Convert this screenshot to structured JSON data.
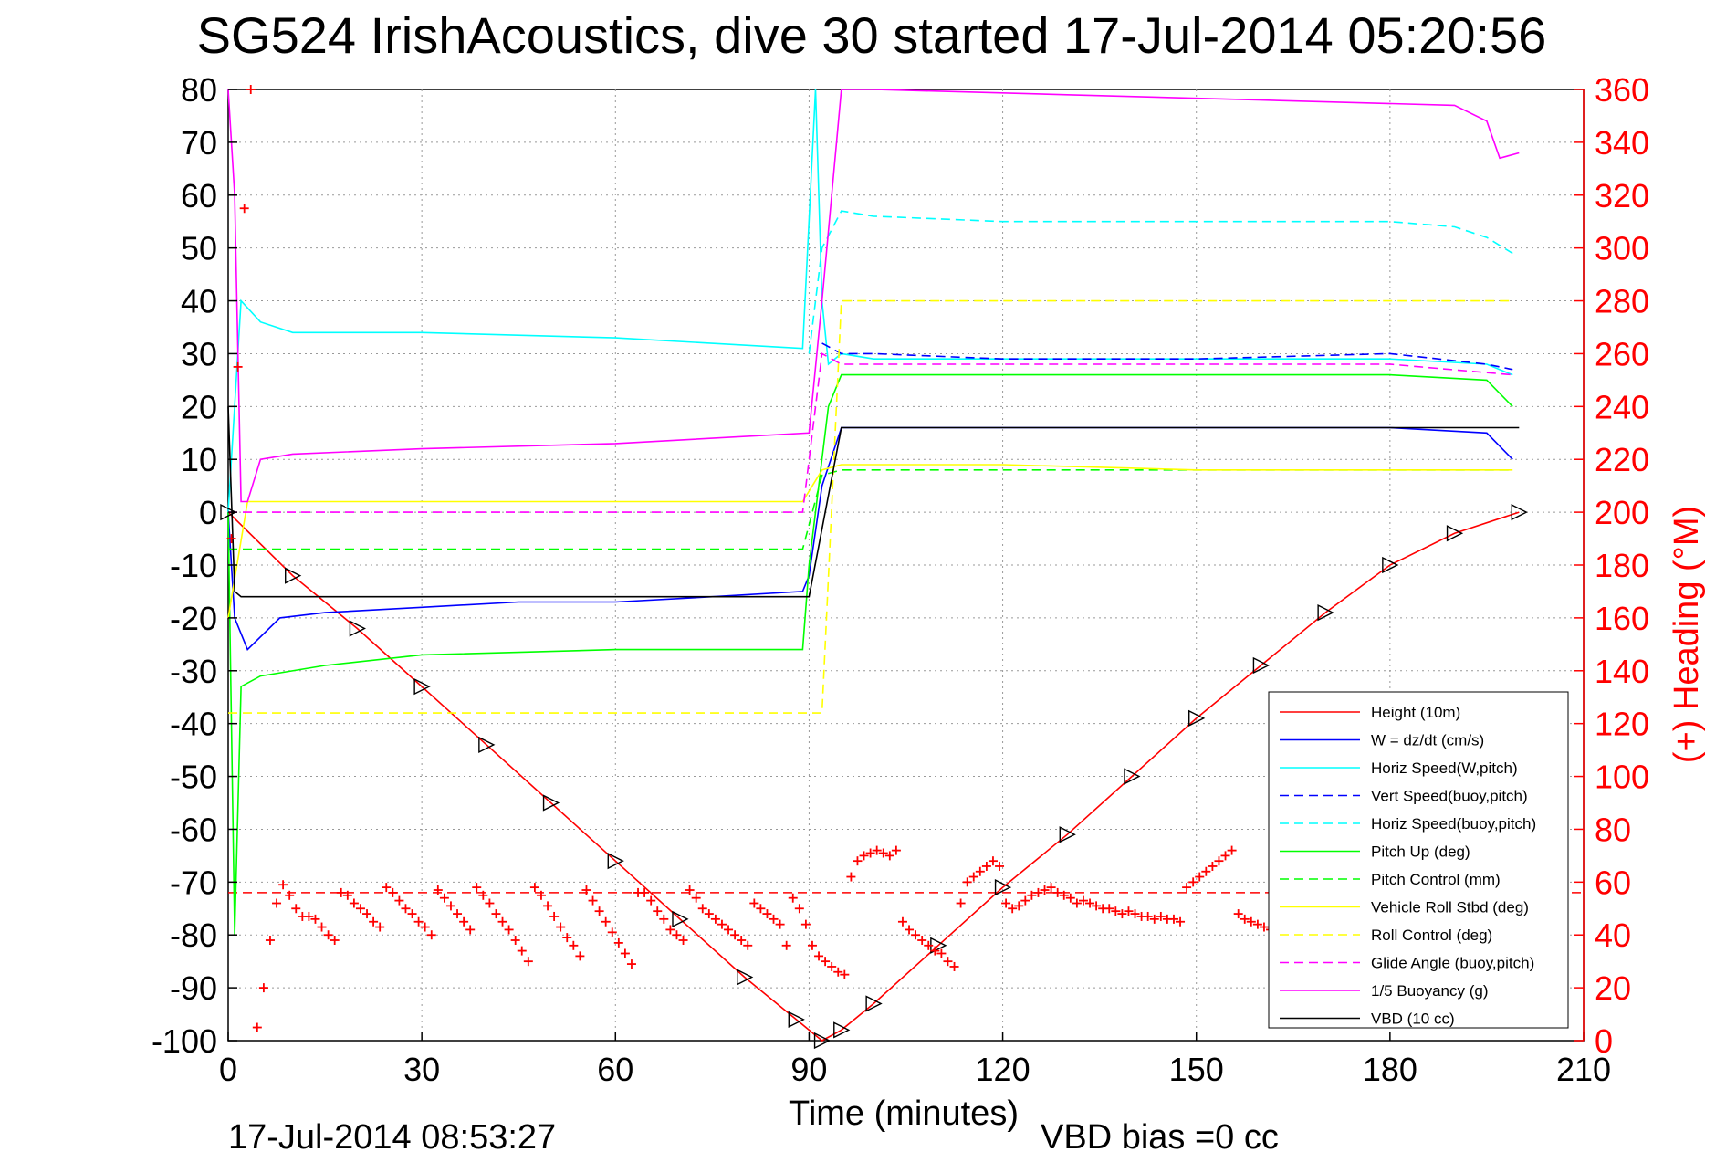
{
  "title": "SG524 IrishAcoustics, dive 30 started 17-Jul-2014 05:20:56",
  "footer": {
    "timestamp": "17-Jul-2014 08:53:27",
    "vbd_bias": "VBD bias =0 cc"
  },
  "colors": {
    "height": "#ff0000",
    "w": "#0000ff",
    "horiz": "#00ffff",
    "pitch": "#00ff00",
    "roll": "#ffff00",
    "glide": "#ff00ff",
    "vbd": "#000000",
    "heading_axis": "#ff0000"
  },
  "chart_data": {
    "type": "line",
    "title": "SG524 IrishAcoustics, dive 30 started 17-Jul-2014 05:20:56",
    "xlabel": "Time (minutes)",
    "ylabel": "",
    "y2label": "(+) Heading (°M)",
    "xlim": [
      0,
      210
    ],
    "ylim": [
      -100,
      80
    ],
    "y2lim": [
      0,
      360
    ],
    "xticks": [
      "0",
      "30",
      "60",
      "90",
      "120",
      "150",
      "180",
      "210"
    ],
    "yticks": [
      "80",
      "70",
      "60",
      "50",
      "40",
      "30",
      "20",
      "10",
      "0",
      "-10",
      "-20",
      "-30",
      "-40",
      "-50",
      "-60",
      "-70",
      "-80",
      "-90",
      "-100"
    ],
    "y2ticks": [
      "360",
      "340",
      "320",
      "300",
      "280",
      "260",
      "240",
      "220",
      "200",
      "180",
      "160",
      "140",
      "120",
      "100",
      "80",
      "60",
      "40",
      "20",
      "0"
    ],
    "grid": true,
    "legend_position": "bottom-right",
    "series": [
      {
        "name": "Height (10m)",
        "style": "solid",
        "color": "#ff0000",
        "x": [
          0,
          10,
          20,
          30,
          40,
          50,
          60,
          70,
          80,
          88,
          92,
          95,
          100,
          110,
          120,
          130,
          140,
          150,
          160,
          170,
          180,
          190,
          200
        ],
        "y": [
          0,
          -12,
          -22,
          -33,
          -44,
          -55,
          -66,
          -77,
          -88,
          -96,
          -100,
          -98,
          -93,
          -82,
          -71,
          -61,
          -50,
          -39,
          -29,
          -19,
          -10,
          -4,
          0
        ]
      },
      {
        "name": "W = dz/dt (cm/s)",
        "style": "solid",
        "color": "#0000ff",
        "x": [
          0,
          1,
          3,
          8,
          15,
          30,
          45,
          60,
          75,
          89,
          90,
          92,
          95,
          100,
          120,
          150,
          180,
          195,
          199
        ],
        "y": [
          0,
          -20,
          -26,
          -20,
          -19,
          -18,
          -17,
          -17,
          -16,
          -15,
          -12,
          5,
          16,
          16,
          16,
          16,
          16,
          15,
          10
        ]
      },
      {
        "name": "Horiz Speed(W,pitch)",
        "style": "solid",
        "color": "#00ffff",
        "x": [
          0,
          2,
          5,
          10,
          30,
          60,
          89,
          91,
          92,
          93,
          95,
          100,
          120,
          150,
          180,
          195,
          199
        ],
        "y": [
          0,
          40,
          36,
          34,
          34,
          33,
          31,
          80,
          40,
          28,
          30,
          29,
          29,
          29,
          29,
          28,
          26
        ]
      },
      {
        "name": "Vert Speed(buoy,pitch)",
        "style": "dashed",
        "color": "#0000ff",
        "x": [
          92,
          95,
          100,
          120,
          150,
          180,
          195,
          199
        ],
        "y": [
          32,
          30,
          30,
          29,
          29,
          30,
          28,
          27
        ]
      },
      {
        "name": "Horiz Speed(buoy,pitch)",
        "style": "dashed",
        "color": "#00ffff",
        "x": [
          90,
          92,
          95,
          100,
          120,
          150,
          180,
          190,
          195,
          199
        ],
        "y": [
          30,
          50,
          57,
          56,
          55,
          55,
          55,
          54,
          52,
          49
        ]
      },
      {
        "name": "Pitch Up (deg)",
        "style": "solid",
        "color": "#00ff00",
        "x": [
          0,
          1,
          2,
          5,
          15,
          30,
          60,
          89,
          90,
          93,
          95,
          100,
          120,
          150,
          180,
          195,
          199
        ],
        "y": [
          0,
          -80,
          -33,
          -31,
          -29,
          -27,
          -26,
          -26,
          -10,
          20,
          26,
          26,
          26,
          26,
          26,
          25,
          20
        ]
      },
      {
        "name": "Pitch Control (mm)",
        "style": "dashed",
        "color": "#00ff00",
        "x": [
          0,
          2,
          30,
          60,
          89,
          92,
          95,
          120,
          150,
          180,
          199
        ],
        "y": [
          -7,
          -7,
          -7,
          -7,
          -7,
          7,
          8,
          8,
          8,
          8,
          8
        ]
      },
      {
        "name": "Vehicle Roll Stbd (deg)",
        "style": "solid",
        "color": "#ffff00",
        "x": [
          0,
          3,
          30,
          60,
          89,
          92,
          95,
          120,
          150,
          180,
          199
        ],
        "y": [
          -20,
          2,
          2,
          2,
          2,
          8,
          9,
          9,
          8,
          8,
          8
        ]
      },
      {
        "name": "Roll Control (deg)",
        "style": "dashed",
        "color": "#ffff00",
        "x": [
          0,
          3,
          30,
          60,
          89,
          92,
          95,
          120,
          150,
          180,
          199
        ],
        "y": [
          -38,
          -38,
          -38,
          -38,
          -38,
          -38,
          40,
          40,
          40,
          40,
          40
        ]
      },
      {
        "name": "Glide Angle (buoy,pitch)",
        "style": "dashed",
        "color": "#ff00ff",
        "x": [
          0,
          30,
          60,
          89,
          92,
          95,
          120,
          150,
          180,
          199
        ],
        "y": [
          0,
          0,
          0,
          0,
          30,
          28,
          28,
          28,
          28,
          26
        ]
      },
      {
        "name": "1/5 Buoyancy (g)",
        "style": "solid",
        "color": "#ff00ff",
        "x": [
          0,
          1,
          2,
          3,
          5,
          10,
          30,
          60,
          90,
          92,
          95,
          100,
          130,
          160,
          190,
          195,
          197,
          200
        ],
        "y": [
          80,
          60,
          2,
          2,
          10,
          11,
          12,
          13,
          15,
          40,
          80,
          80,
          79,
          78,
          77,
          74,
          67,
          68
        ]
      },
      {
        "name": "VBD (10 cc)",
        "style": "solid",
        "color": "#000000",
        "x": [
          0,
          1,
          2,
          90,
          95,
          200
        ],
        "y": [
          20,
          -15,
          -16,
          -16,
          16,
          16
        ]
      }
    ],
    "heading": {
      "name": "Heading",
      "axis": "right",
      "marker": "+",
      "color": "#ff0000",
      "x": [
        0.5,
        1.5,
        2.5,
        3.5,
        4.5,
        5.5,
        6.5,
        7.5,
        8.5,
        9.5,
        10.5,
        11.5,
        12.5,
        13.5,
        14.5,
        15.5,
        16.5,
        17.5,
        18.5,
        19.5,
        20.5,
        21.5,
        22.5,
        23.5,
        24.5,
        25.5,
        26.5,
        27.5,
        28.5,
        29.5,
        30.5,
        31.5,
        32.5,
        33.5,
        34.5,
        35.5,
        36.5,
        37.5,
        38.5,
        39.5,
        40.5,
        41.5,
        42.5,
        43.5,
        44.5,
        45.5,
        46.5,
        47.5,
        48.5,
        49.5,
        50.5,
        51.5,
        52.5,
        53.5,
        54.5,
        55.5,
        56.5,
        57.5,
        58.5,
        59.5,
        60.5,
        61.5,
        62.5,
        63.5,
        64.5,
        65.5,
        66.5,
        67.5,
        68.5,
        69.5,
        70.5,
        71.5,
        72.5,
        73.5,
        74.5,
        75.5,
        76.5,
        77.5,
        78.5,
        79.5,
        80.5,
        81.5,
        82.5,
        83.5,
        84.5,
        85.5,
        86.5,
        87.5,
        88.5,
        89.5,
        90.5,
        91.5,
        92.5,
        93.5,
        94.5,
        95.5,
        96.5,
        97.5,
        98.5,
        99.5,
        100.5,
        101.5,
        102.5,
        103.5,
        104.5,
        105.5,
        106.5,
        107.5,
        108.5,
        109.5,
        110.5,
        111.5,
        112.5,
        113.5,
        114.5,
        115.5,
        116.5,
        117.5,
        118.5,
        119.5,
        120.5,
        121.5,
        122.5,
        123.5,
        124.5,
        125.5,
        126.5,
        127.5,
        128.5,
        129.5,
        130.5,
        131.5,
        132.5,
        133.5,
        134.5,
        135.5,
        136.5,
        137.5,
        138.5,
        139.5,
        140.5,
        141.5,
        142.5,
        143.5,
        144.5,
        145.5,
        146.5,
        147.5,
        148.5,
        149.5,
        150.5,
        151.5,
        152.5,
        153.5,
        154.5,
        155.5,
        156.5,
        157.5,
        158.5,
        159.5,
        160.5,
        161.5
      ],
      "y": [
        190,
        255,
        315,
        360,
        5,
        20,
        38,
        52,
        59,
        55,
        50,
        47,
        47,
        46,
        43,
        40,
        38,
        56,
        55,
        52,
        50,
        48,
        45,
        43,
        58,
        56,
        53,
        50,
        48,
        45,
        43,
        40,
        57,
        54,
        51,
        48,
        45,
        42,
        58,
        55,
        52,
        48,
        45,
        42,
        38,
        34,
        30,
        58,
        55,
        51,
        47,
        43,
        39,
        36,
        32,
        57,
        53,
        49,
        45,
        41,
        37,
        33,
        29,
        56,
        56,
        53,
        49,
        46,
        42,
        40,
        38,
        57,
        54,
        50,
        48,
        46,
        44,
        42,
        40,
        38,
        36,
        52,
        50,
        48,
        46,
        44,
        36,
        54,
        50,
        44,
        36,
        32,
        30,
        28,
        26,
        25,
        62,
        68,
        70,
        71,
        72,
        71,
        70,
        72,
        45,
        42,
        40,
        38,
        36,
        34,
        33,
        30,
        28,
        52,
        60,
        62,
        64,
        66,
        68,
        66,
        52,
        50,
        51,
        53,
        55,
        56,
        57,
        58,
        56,
        55,
        54,
        52,
        53,
        52,
        51,
        50,
        50,
        49,
        48,
        49,
        48,
        47,
        47,
        46,
        47,
        46,
        46,
        45,
        58,
        60,
        62,
        64,
        66,
        68,
        70,
        72,
        48,
        46,
        45,
        44,
        43,
        42
      ]
    },
    "reference_lines": [
      {
        "axis": "right",
        "y": 56,
        "style": "dashed",
        "color": "#ff0000"
      }
    ]
  }
}
